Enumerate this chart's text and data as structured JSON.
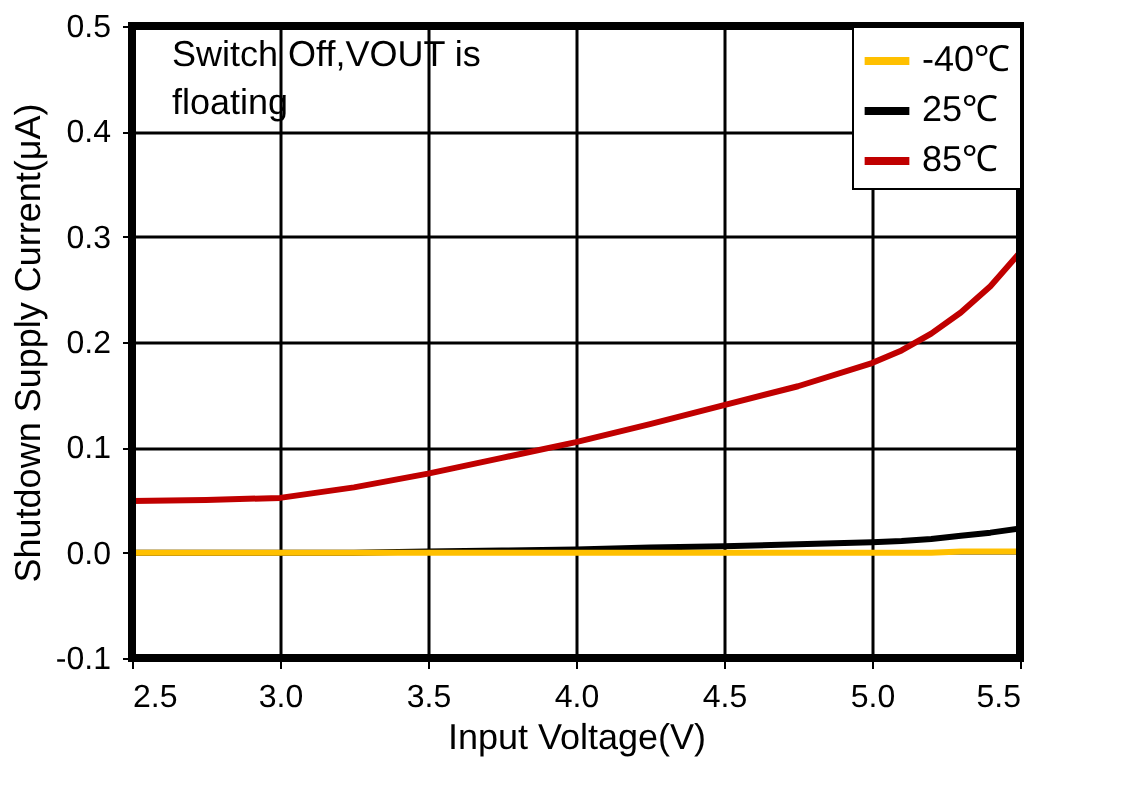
{
  "chart_data": {
    "type": "line",
    "xlabel": "Input Voltage(V)",
    "ylabel": "Shutdown Supply Current(μA)",
    "xlim": [
      2.5,
      5.5
    ],
    "xticks": [
      {
        "value": 2.5,
        "label": "2.5"
      },
      {
        "value": 3.0,
        "label": "3.0"
      },
      {
        "value": 3.5,
        "label": "3.5"
      },
      {
        "value": 4.0,
        "label": "4.0"
      },
      {
        "value": 4.5,
        "label": "4.5"
      },
      {
        "value": 5.0,
        "label": "5.0"
      },
      {
        "value": 5.5,
        "label": "5.5"
      }
    ],
    "ylim": [
      -0.1,
      0.5
    ],
    "yticks": [
      {
        "value": -0.1,
        "label": "-0.1"
      },
      {
        "value": 0,
        "label": "0.0"
      },
      {
        "value": 0.1,
        "label": "0.1"
      },
      {
        "value": 0.2,
        "label": "0.2"
      },
      {
        "value": 0.3,
        "label": "0.3"
      },
      {
        "value": 0.4,
        "label": "0.4"
      },
      {
        "value": 0.5,
        "label": "0.5"
      }
    ],
    "x": [
      2.5,
      2.75,
      3.0,
      3.25,
      3.5,
      3.75,
      4.0,
      4.25,
      4.5,
      4.75,
      5.0,
      5.1,
      5.2,
      5.3,
      5.4,
      5.5
    ],
    "series": [
      {
        "name": "-40℃",
        "color": "#ffc000",
        "values": [
          0,
          0,
          0,
          0,
          0,
          0,
          0,
          0,
          0,
          0,
          0,
          0,
          0,
          0.001,
          0.001,
          0.001
        ]
      },
      {
        "name": "25℃",
        "color": "#000000",
        "values": [
          0,
          0,
          0,
          0,
          0.001,
          0.002,
          0.003,
          0.005,
          0.006,
          0.008,
          0.01,
          0.011,
          0.013,
          0.016,
          0.019,
          0.023
        ]
      },
      {
        "name": "85℃",
        "color": "#c00000",
        "values": [
          0.049,
          0.05,
          0.052,
          0.062,
          0.075,
          0.09,
          0.105,
          0.122,
          0.14,
          0.158,
          0.18,
          0.192,
          0.208,
          0.228,
          0.253,
          0.285
        ]
      }
    ],
    "annotations": [
      "Switch Off,VOUT is floating"
    ],
    "grid": true,
    "legend": "top right",
    "line_style": "solid",
    "marker": "none"
  }
}
